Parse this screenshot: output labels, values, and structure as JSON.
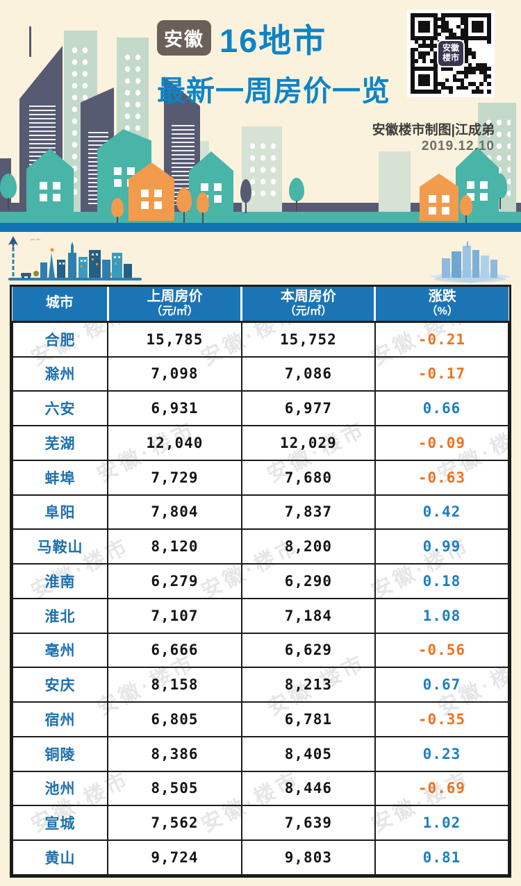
{
  "meta": {
    "title_badge": "安徽",
    "title_line1": "16地市",
    "title_line2": "最新一周房价一览",
    "credit": "安徽楼市制图|江成弟",
    "date": "2019.12.10",
    "qr_logo_line1": "安徽",
    "qr_logo_line2": "楼市"
  },
  "table": {
    "headers": [
      {
        "line1": "城市",
        "line2": ""
      },
      {
        "line1": "上周房价",
        "line2": "（元/㎡）"
      },
      {
        "line1": "本周房价",
        "line2": "（元/㎡）"
      },
      {
        "line1": "涨跌",
        "line2": "（%）"
      }
    ],
    "rows": [
      {
        "city": "合肥",
        "last_week": "15,785",
        "this_week": "15,752",
        "change": "-0.21"
      },
      {
        "city": "滁州",
        "last_week": "7,098",
        "this_week": "7,086",
        "change": "-0.17"
      },
      {
        "city": "六安",
        "last_week": "6,931",
        "this_week": "6,977",
        "change": "0.66"
      },
      {
        "city": "芜湖",
        "last_week": "12,040",
        "this_week": "12,029",
        "change": "-0.09"
      },
      {
        "city": "蚌埠",
        "last_week": "7,729",
        "this_week": "7,680",
        "change": "-0.63"
      },
      {
        "city": "阜阳",
        "last_week": "7,804",
        "this_week": "7,837",
        "change": "0.42"
      },
      {
        "city": "马鞍山",
        "last_week": "8,120",
        "this_week": "8,200",
        "change": "0.99"
      },
      {
        "city": "淮南",
        "last_week": "6,279",
        "this_week": "6,290",
        "change": "0.18"
      },
      {
        "city": "淮北",
        "last_week": "7,107",
        "this_week": "7,184",
        "change": "1.08"
      },
      {
        "city": "亳州",
        "last_week": "6,666",
        "this_week": "6,629",
        "change": "-0.56"
      },
      {
        "city": "安庆",
        "last_week": "8,158",
        "this_week": "8,213",
        "change": "0.67"
      },
      {
        "city": "宿州",
        "last_week": "6,805",
        "this_week": "6,781",
        "change": "-0.35"
      },
      {
        "city": "铜陵",
        "last_week": "8,386",
        "this_week": "8,405",
        "change": "0.23"
      },
      {
        "city": "池州",
        "last_week": "8,505",
        "this_week": "8,446",
        "change": "-0.69"
      },
      {
        "city": "宣城",
        "last_week": "7,562",
        "this_week": "7,639",
        "change": "1.02"
      },
      {
        "city": "黄山",
        "last_week": "9,724",
        "this_week": "9,803",
        "change": "0.81"
      }
    ]
  },
  "watermark_text": "安徽·楼市",
  "colors": {
    "cream_bg": "#fbf2dd",
    "header_blue": "#1b74b4",
    "title_blue": "#0d84c6",
    "pos_blue": "#1d7fc0",
    "neg_orange": "#ed7321",
    "city_blue": "#1c6fae",
    "badge_gray": "#6b6059",
    "ink": "#1b1b1b",
    "band_blue": "#1173b5",
    "teal": "#49b4a8",
    "slate": "#565b72",
    "pale_green": "#c3d9c9",
    "mint": "#d6e2d4",
    "orange": "#f29b4d"
  },
  "chart_data": {
    "type": "table",
    "title": "安徽16地市 最新一周房价一览",
    "date": "2019.12.10",
    "columns": [
      "城市",
      "上周房价（元/㎡）",
      "本周房价（元/㎡）",
      "涨跌（%）"
    ],
    "rows": [
      [
        "合肥",
        15785,
        15752,
        -0.21
      ],
      [
        "滁州",
        7098,
        7086,
        -0.17
      ],
      [
        "六安",
        6931,
        6977,
        0.66
      ],
      [
        "芜湖",
        12040,
        12029,
        -0.09
      ],
      [
        "蚌埠",
        7729,
        7680,
        -0.63
      ],
      [
        "阜阳",
        7804,
        7837,
        0.42
      ],
      [
        "马鞍山",
        8120,
        8200,
        0.99
      ],
      [
        "淮南",
        6279,
        6290,
        0.18
      ],
      [
        "淮北",
        7107,
        7184,
        1.08
      ],
      [
        "亳州",
        6666,
        6629,
        -0.56
      ],
      [
        "安庆",
        8158,
        8213,
        0.67
      ],
      [
        "宿州",
        6805,
        6781,
        -0.35
      ],
      [
        "铜陵",
        8386,
        8405,
        0.23
      ],
      [
        "池州",
        8505,
        8446,
        -0.69
      ],
      [
        "宣城",
        7562,
        7639,
        1.02
      ],
      [
        "黄山",
        9724,
        9803,
        0.81
      ]
    ]
  }
}
